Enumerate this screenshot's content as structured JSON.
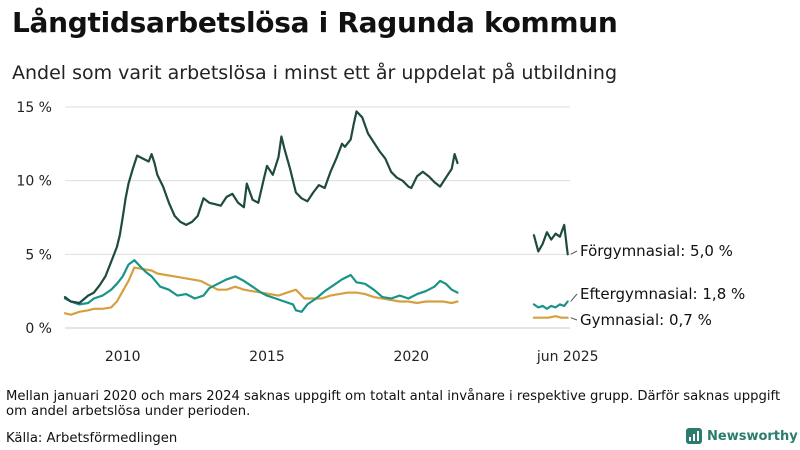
{
  "title": "Långtidsarbetslösa i Ragunda kommun",
  "subtitle": "Andel som varit arbetslösa i minst ett år uppdelat på utbildning",
  "note": "Mellan januari 2020 och mars 2024 saknas uppgift om totalt antal invånare i respektive grupp. Därför saknas uppgift om andel arbetslösa under perioden.",
  "source": "Källa: Arbetsförmedlingen",
  "brand": {
    "name": "Newsworthy",
    "icon": "newsworthy-logo-icon",
    "color": "#2a7d6e"
  },
  "chart_data": {
    "type": "line",
    "xlabel": "",
    "ylabel": "",
    "x_range": [
      2008.0,
      2025.5
    ],
    "y_range": [
      0,
      15
    ],
    "grid": true,
    "y_ticks": [
      {
        "value": 0,
        "label": "0 %"
      },
      {
        "value": 5,
        "label": "5 %"
      },
      {
        "value": 10,
        "label": "10 %"
      },
      {
        "value": 15,
        "label": "15 %"
      }
    ],
    "x_ticks": [
      {
        "value": 2010,
        "label": "2010"
      },
      {
        "value": 2015,
        "label": "2015"
      },
      {
        "value": 2020,
        "label": "2020"
      },
      {
        "value": 2025.42,
        "label": "jun 2025"
      }
    ],
    "series": [
      {
        "name": "Förgymnasial",
        "label": "Förgymnasial: 5,0 %",
        "color": "#1e4a3f",
        "segments": [
          [
            [
              2008.0,
              2.1
            ],
            [
              2008.2,
              1.8
            ],
            [
              2008.5,
              1.7
            ],
            [
              2008.8,
              2.2
            ],
            [
              2009.0,
              2.4
            ],
            [
              2009.2,
              2.9
            ],
            [
              2009.4,
              3.5
            ],
            [
              2009.6,
              4.5
            ],
            [
              2009.8,
              5.5
            ],
            [
              2009.9,
              6.3
            ],
            [
              2010.0,
              7.5
            ],
            [
              2010.1,
              8.8
            ],
            [
              2010.2,
              9.8
            ],
            [
              2010.35,
              10.8
            ],
            [
              2010.5,
              11.7
            ],
            [
              2010.7,
              11.5
            ],
            [
              2010.9,
              11.3
            ],
            [
              2011.0,
              11.8
            ],
            [
              2011.1,
              11.2
            ],
            [
              2011.2,
              10.4
            ],
            [
              2011.4,
              9.6
            ],
            [
              2011.6,
              8.5
            ],
            [
              2011.8,
              7.6
            ],
            [
              2012.0,
              7.2
            ],
            [
              2012.2,
              7.0
            ],
            [
              2012.4,
              7.2
            ],
            [
              2012.6,
              7.6
            ],
            [
              2012.8,
              8.8
            ],
            [
              2013.0,
              8.5
            ],
            [
              2013.2,
              8.4
            ],
            [
              2013.4,
              8.3
            ],
            [
              2013.6,
              8.9
            ],
            [
              2013.8,
              9.1
            ],
            [
              2014.0,
              8.5
            ],
            [
              2014.2,
              8.2
            ],
            [
              2014.3,
              9.8
            ],
            [
              2014.5,
              8.7
            ],
            [
              2014.7,
              8.5
            ],
            [
              2014.9,
              10.2
            ],
            [
              2015.0,
              11.0
            ],
            [
              2015.2,
              10.4
            ],
            [
              2015.4,
              11.6
            ],
            [
              2015.5,
              13.0
            ],
            [
              2015.6,
              12.2
            ],
            [
              2015.8,
              10.8
            ],
            [
              2016.0,
              9.2
            ],
            [
              2016.2,
              8.8
            ],
            [
              2016.4,
              8.6
            ],
            [
              2016.6,
              9.2
            ],
            [
              2016.8,
              9.7
            ],
            [
              2017.0,
              9.5
            ],
            [
              2017.2,
              10.6
            ],
            [
              2017.4,
              11.5
            ],
            [
              2017.6,
              12.5
            ],
            [
              2017.7,
              12.3
            ],
            [
              2017.9,
              12.8
            ],
            [
              2018.0,
              13.8
            ],
            [
              2018.1,
              14.7
            ],
            [
              2018.3,
              14.3
            ],
            [
              2018.5,
              13.2
            ],
            [
              2018.7,
              12.6
            ],
            [
              2018.9,
              12.0
            ],
            [
              2019.1,
              11.5
            ],
            [
              2019.3,
              10.6
            ],
            [
              2019.5,
              10.2
            ],
            [
              2019.7,
              10.0
            ],
            [
              2019.9,
              9.6
            ],
            [
              2020.0,
              9.5
            ],
            [
              2020.2,
              10.3
            ],
            [
              2020.4,
              10.6
            ],
            [
              2020.6,
              10.3
            ],
            [
              2020.8,
              9.9
            ],
            [
              2021.0,
              9.6
            ],
            [
              2021.2,
              10.2
            ],
            [
              2021.4,
              10.8
            ],
            [
              2021.5,
              11.8
            ],
            [
              2021.6,
              11.2
            ]
          ],
          [
            [
              2024.25,
              6.3
            ],
            [
              2024.4,
              5.2
            ],
            [
              2024.55,
              5.7
            ],
            [
              2024.7,
              6.5
            ],
            [
              2024.85,
              6.0
            ],
            [
              2025.0,
              6.4
            ],
            [
              2025.15,
              6.2
            ],
            [
              2025.3,
              7.0
            ],
            [
              2025.42,
              5.0
            ]
          ]
        ]
      },
      {
        "name": "Eftergymnasial",
        "label": "Eftergymnasial: 1,8 %",
        "color": "#1a9488",
        "segments": [
          [
            [
              2008.0,
              2.0
            ],
            [
              2008.2,
              1.8
            ],
            [
              2008.5,
              1.6
            ],
            [
              2008.8,
              1.7
            ],
            [
              2009.0,
              2.0
            ],
            [
              2009.3,
              2.2
            ],
            [
              2009.6,
              2.6
            ],
            [
              2009.8,
              3.0
            ],
            [
              2010.0,
              3.5
            ],
            [
              2010.2,
              4.3
            ],
            [
              2010.4,
              4.6
            ],
            [
              2010.6,
              4.2
            ],
            [
              2010.8,
              3.8
            ],
            [
              2011.0,
              3.5
            ],
            [
              2011.3,
              2.8
            ],
            [
              2011.6,
              2.6
            ],
            [
              2011.9,
              2.2
            ],
            [
              2012.2,
              2.3
            ],
            [
              2012.5,
              2.0
            ],
            [
              2012.8,
              2.2
            ],
            [
              2013.0,
              2.7
            ],
            [
              2013.3,
              3.0
            ],
            [
              2013.6,
              3.3
            ],
            [
              2013.9,
              3.5
            ],
            [
              2014.2,
              3.2
            ],
            [
              2014.5,
              2.8
            ],
            [
              2014.8,
              2.4
            ],
            [
              2015.0,
              2.2
            ],
            [
              2015.3,
              2.0
            ],
            [
              2015.6,
              1.8
            ],
            [
              2015.9,
              1.6
            ],
            [
              2016.0,
              1.2
            ],
            [
              2016.2,
              1.1
            ],
            [
              2016.4,
              1.6
            ],
            [
              2016.7,
              2.0
            ],
            [
              2017.0,
              2.5
            ],
            [
              2017.3,
              2.9
            ],
            [
              2017.6,
              3.3
            ],
            [
              2017.9,
              3.6
            ],
            [
              2018.1,
              3.1
            ],
            [
              2018.4,
              3.0
            ],
            [
              2018.7,
              2.6
            ],
            [
              2019.0,
              2.1
            ],
            [
              2019.3,
              2.0
            ],
            [
              2019.6,
              2.2
            ],
            [
              2019.9,
              2.0
            ],
            [
              2020.2,
              2.3
            ],
            [
              2020.5,
              2.5
            ],
            [
              2020.8,
              2.8
            ],
            [
              2021.0,
              3.2
            ],
            [
              2021.2,
              3.0
            ],
            [
              2021.4,
              2.6
            ],
            [
              2021.6,
              2.4
            ]
          ],
          [
            [
              2024.25,
              1.6
            ],
            [
              2024.4,
              1.4
            ],
            [
              2024.55,
              1.5
            ],
            [
              2024.7,
              1.3
            ],
            [
              2024.85,
              1.5
            ],
            [
              2025.0,
              1.4
            ],
            [
              2025.15,
              1.6
            ],
            [
              2025.3,
              1.5
            ],
            [
              2025.42,
              1.8
            ]
          ]
        ]
      },
      {
        "name": "Gymnasial",
        "label": "Gymnasial: 0,7 %",
        "color": "#d6a040",
        "segments": [
          [
            [
              2008.0,
              1.0
            ],
            [
              2008.2,
              0.9
            ],
            [
              2008.5,
              1.1
            ],
            [
              2008.8,
              1.2
            ],
            [
              2009.0,
              1.3
            ],
            [
              2009.3,
              1.3
            ],
            [
              2009.6,
              1.4
            ],
            [
              2009.8,
              1.8
            ],
            [
              2010.0,
              2.5
            ],
            [
              2010.2,
              3.2
            ],
            [
              2010.4,
              4.1
            ],
            [
              2010.7,
              4.0
            ],
            [
              2011.0,
              3.9
            ],
            [
              2011.2,
              3.7
            ],
            [
              2011.5,
              3.6
            ],
            [
              2011.8,
              3.5
            ],
            [
              2012.1,
              3.4
            ],
            [
              2012.4,
              3.3
            ],
            [
              2012.7,
              3.2
            ],
            [
              2013.0,
              2.9
            ],
            [
              2013.3,
              2.6
            ],
            [
              2013.6,
              2.6
            ],
            [
              2013.9,
              2.8
            ],
            [
              2014.2,
              2.6
            ],
            [
              2014.5,
              2.5
            ],
            [
              2014.8,
              2.4
            ],
            [
              2015.1,
              2.3
            ],
            [
              2015.4,
              2.2
            ],
            [
              2015.7,
              2.4
            ],
            [
              2016.0,
              2.6
            ],
            [
              2016.3,
              2.0
            ],
            [
              2016.6,
              2.0
            ],
            [
              2016.9,
              2.0
            ],
            [
              2017.2,
              2.2
            ],
            [
              2017.5,
              2.3
            ],
            [
              2017.8,
              2.4
            ],
            [
              2018.1,
              2.4
            ],
            [
              2018.4,
              2.3
            ],
            [
              2018.7,
              2.1
            ],
            [
              2019.0,
              2.0
            ],
            [
              2019.3,
              1.9
            ],
            [
              2019.6,
              1.8
            ],
            [
              2019.9,
              1.8
            ],
            [
              2020.2,
              1.7
            ],
            [
              2020.5,
              1.8
            ],
            [
              2020.8,
              1.8
            ],
            [
              2021.1,
              1.8
            ],
            [
              2021.4,
              1.7
            ],
            [
              2021.6,
              1.8
            ]
          ],
          [
            [
              2024.25,
              0.7
            ],
            [
              2024.5,
              0.7
            ],
            [
              2024.75,
              0.7
            ],
            [
              2025.0,
              0.8
            ],
            [
              2025.2,
              0.7
            ],
            [
              2025.42,
              0.7
            ]
          ]
        ]
      }
    ]
  }
}
